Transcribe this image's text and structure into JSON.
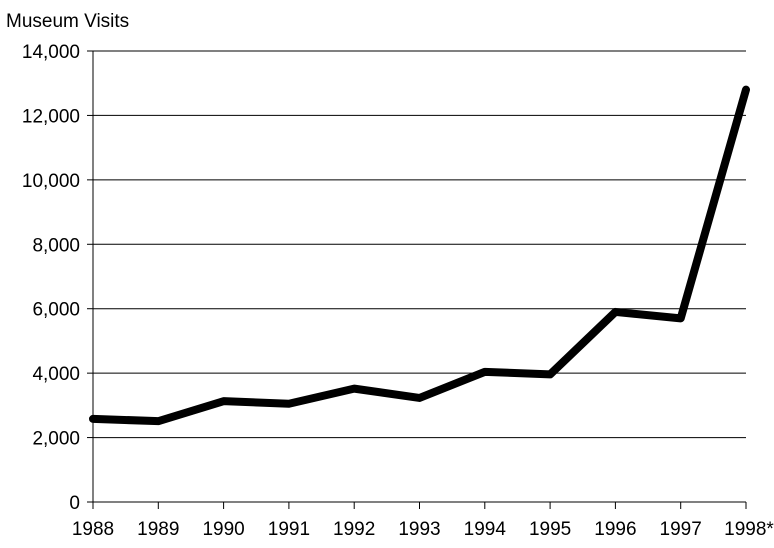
{
  "chart_data": {
    "type": "line",
    "title": "Museum  Visits",
    "xlabel": "",
    "ylabel": "",
    "categories": [
      "1988",
      "1989",
      "1990",
      "1991",
      "1992",
      "1993",
      "1994",
      "1995",
      "1996",
      "1997",
      "1998*"
    ],
    "series": [
      {
        "values": [
          2580,
          2510,
          3130,
          3050,
          3520,
          3230,
          4040,
          3960,
          5900,
          5700,
          12800
        ]
      }
    ],
    "ylim": [
      0,
      14000
    ],
    "yticks": [
      0,
      2000,
      4000,
      6000,
      8000,
      10000,
      12000,
      14000
    ],
    "ytick_labels": [
      "0",
      "2,000",
      "4,000",
      "6,000",
      "8,000",
      "10,000",
      "12,000",
      "14,000"
    ],
    "grid": "horizontal",
    "legend": "none",
    "colors": {
      "line": "#000000",
      "grid": "#000000",
      "axis": "#000000"
    }
  }
}
